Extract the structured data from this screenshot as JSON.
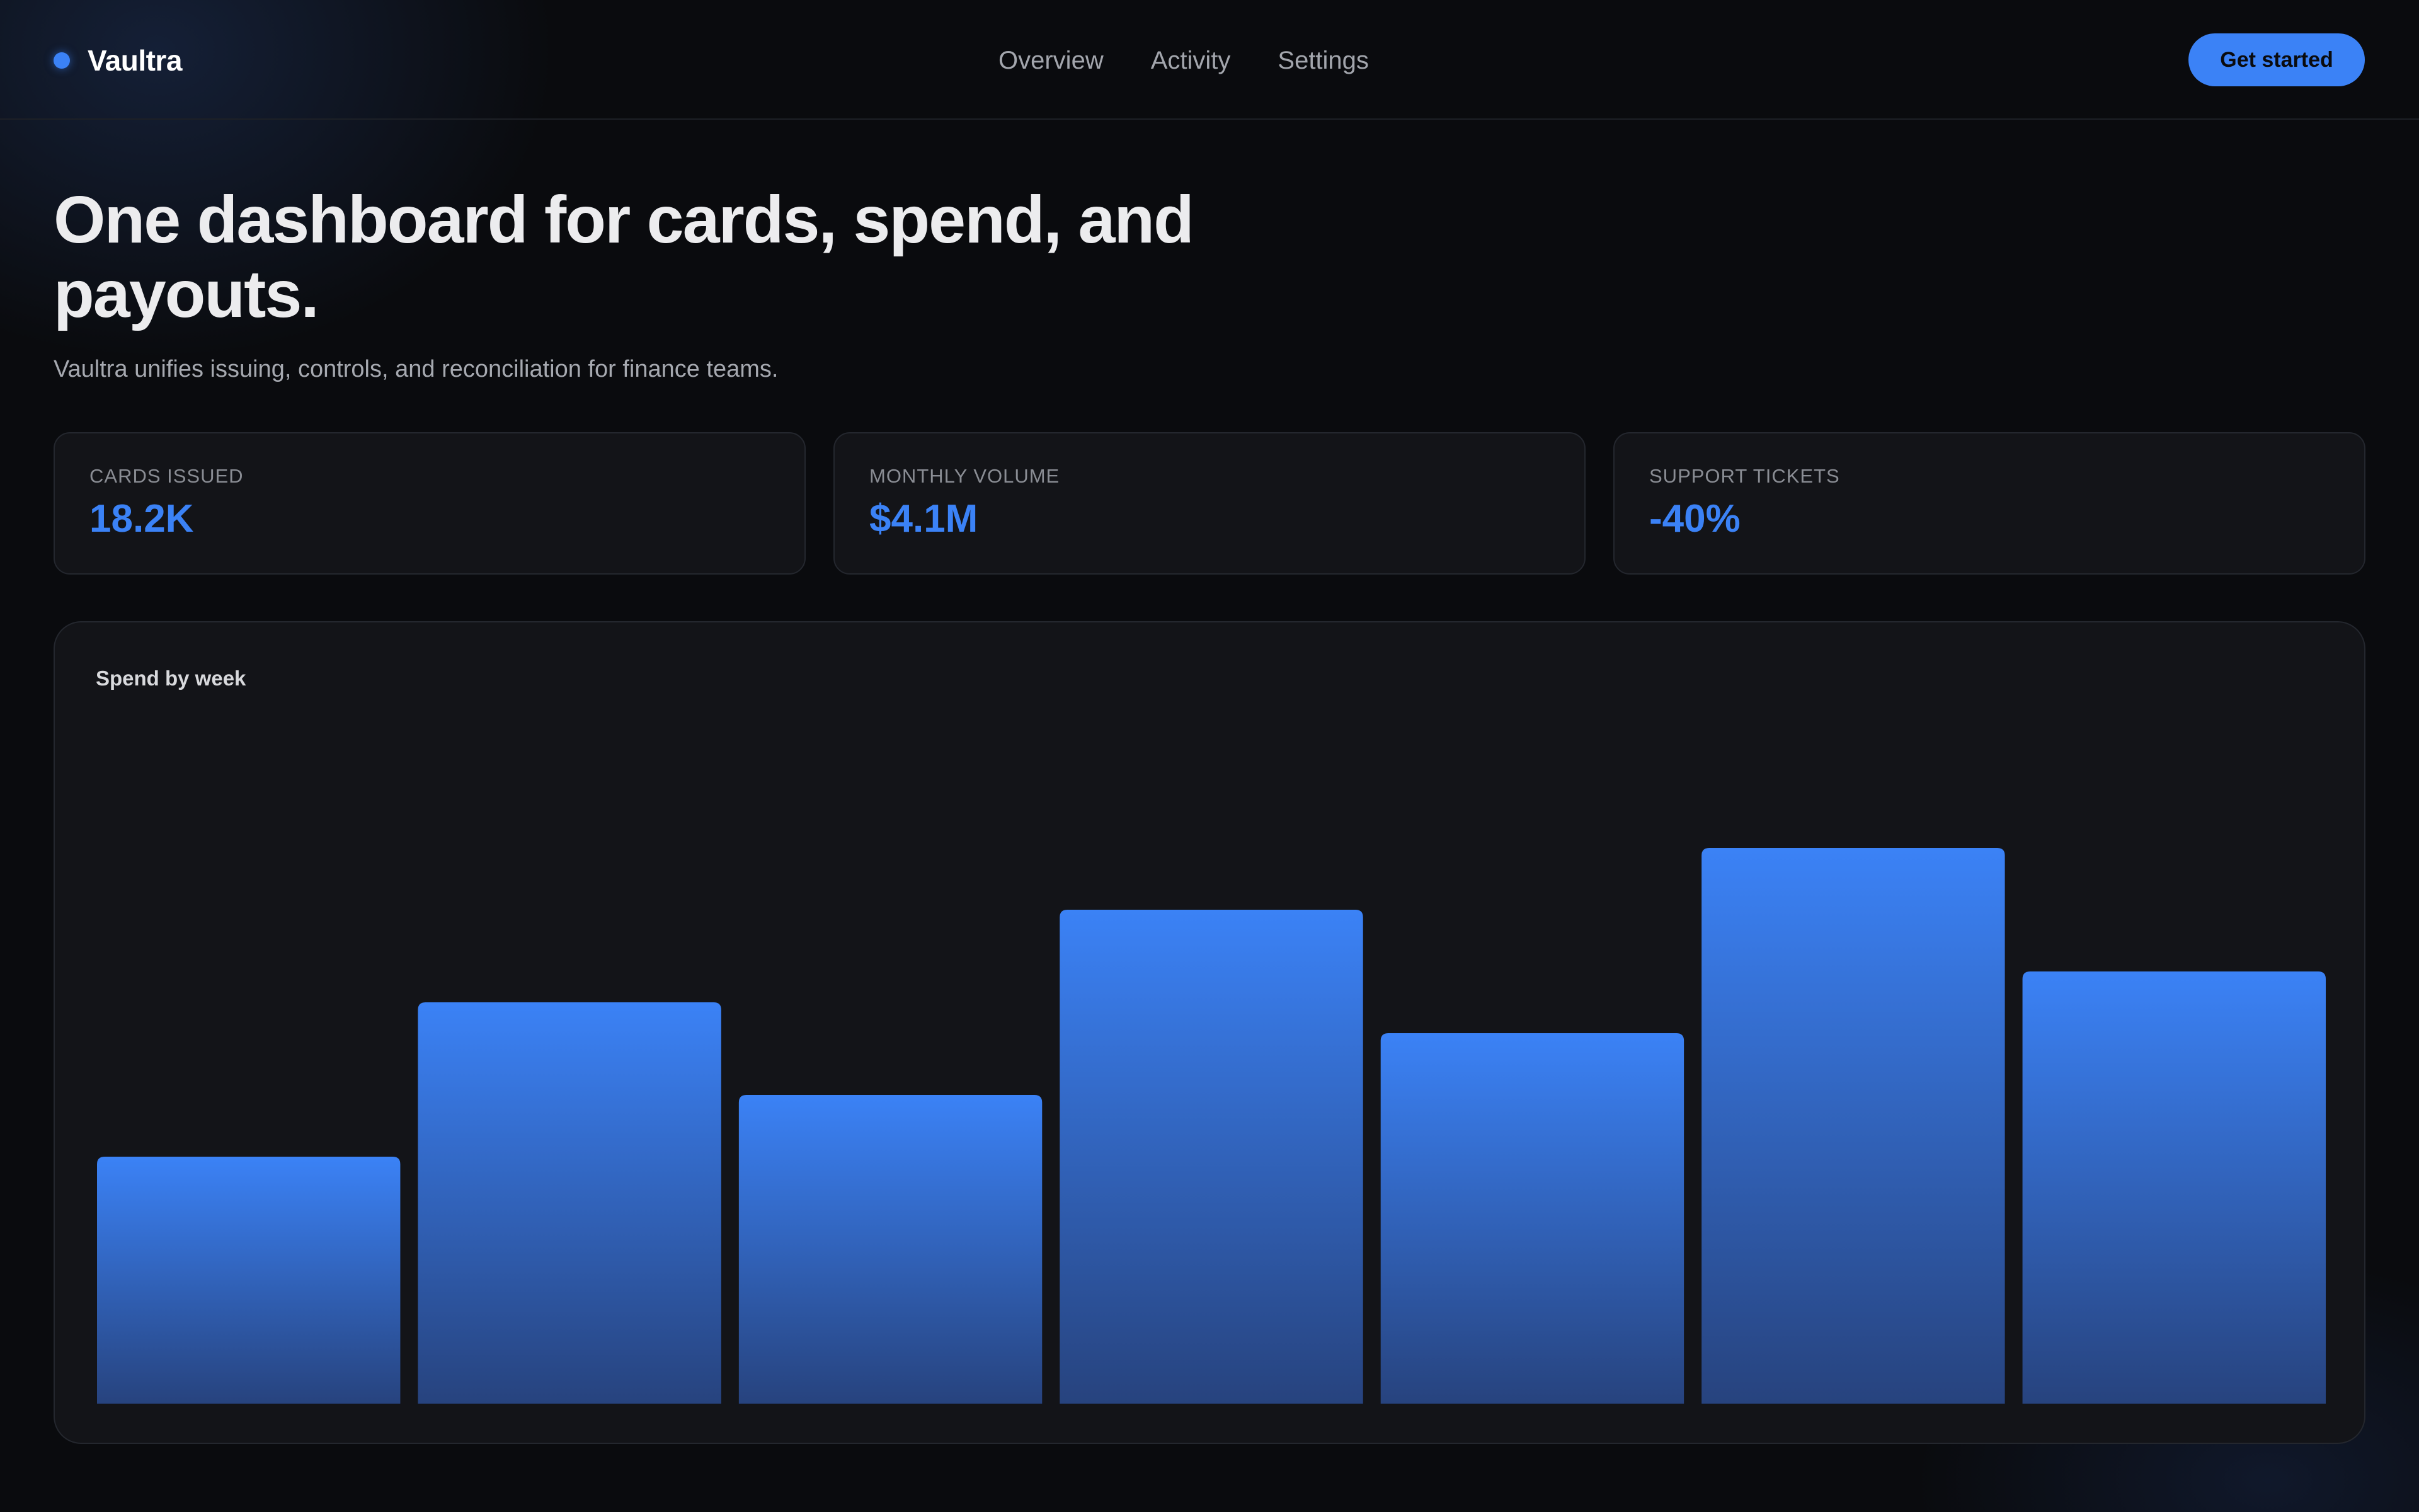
{
  "brand": {
    "name": "Vaultra",
    "accent": "#3b82f6"
  },
  "nav": {
    "items": [
      "Overview",
      "Activity",
      "Settings"
    ]
  },
  "header": {
    "cta_label": "Get started"
  },
  "hero": {
    "title": "One dashboard for cards, spend, and payouts.",
    "subtitle": "Vaultra unifies issuing, controls, and reconciliation for finance teams."
  },
  "stats": [
    {
      "label": "Cards issued",
      "value": "18.2K"
    },
    {
      "label": "Monthly volume",
      "value": "$4.1M"
    },
    {
      "label": "Support tickets",
      "value": "-40%"
    }
  ],
  "chart_data": {
    "type": "bar",
    "title": "Spend by week",
    "values": [
      40,
      65,
      50,
      80,
      60,
      90,
      70
    ],
    "ylim": [
      0,
      100
    ],
    "grid": false,
    "legend": "none",
    "bar_color_top": "#3b82f6",
    "bar_color_bottom": "#27437e"
  }
}
